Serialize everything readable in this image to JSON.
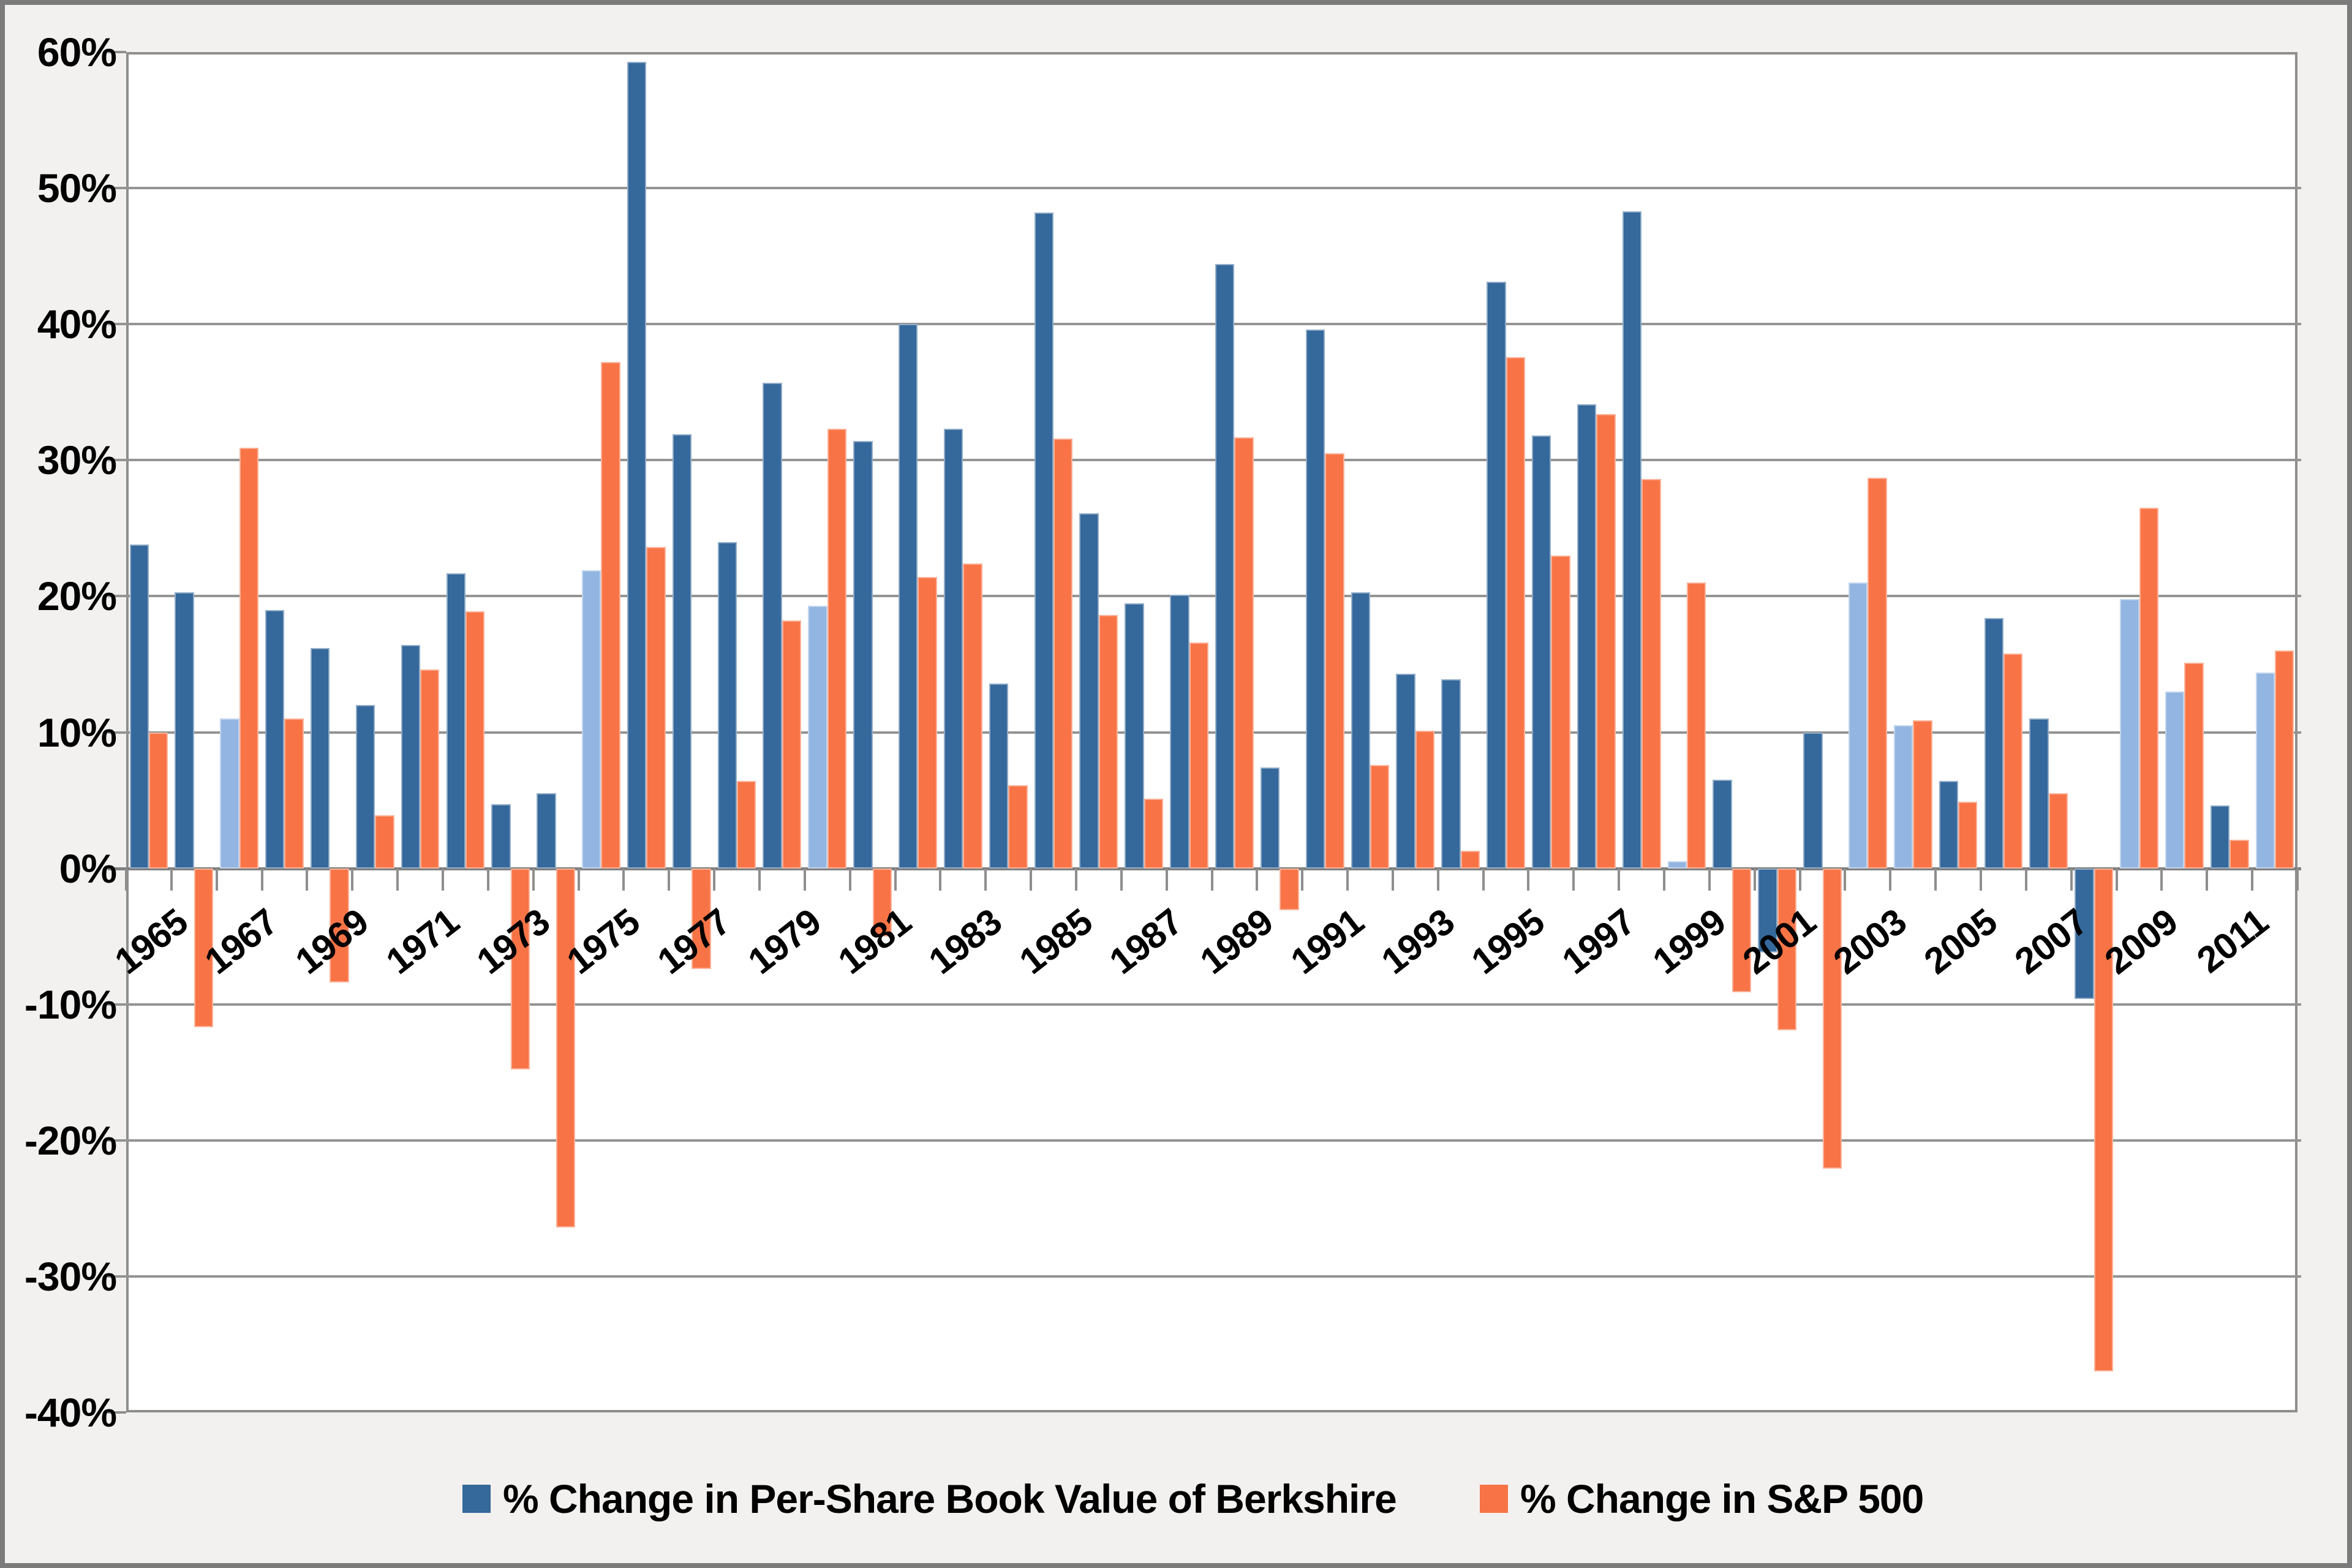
{
  "chart_data": {
    "type": "bar",
    "title": "",
    "categories": [
      1965,
      1966,
      1967,
      1968,
      1969,
      1970,
      1971,
      1972,
      1973,
      1974,
      1975,
      1976,
      1977,
      1978,
      1979,
      1980,
      1981,
      1982,
      1983,
      1984,
      1985,
      1986,
      1987,
      1988,
      1989,
      1990,
      1991,
      1992,
      1993,
      1994,
      1995,
      1996,
      1997,
      1998,
      1999,
      2000,
      2001,
      2002,
      2003,
      2004,
      2005,
      2006,
      2007,
      2008,
      2009,
      2010,
      2011,
      2012
    ],
    "series": [
      {
        "name": "% Change in Per-Share Book Value of Berkshire",
        "color": "#35689B",
        "underperform_color": "#92B5E1",
        "underperform_years": [
          1967,
          1975,
          1980,
          1999,
          2003,
          2004,
          2009,
          2010,
          2012
        ],
        "values": [
          23.8,
          20.3,
          11.0,
          19.0,
          16.2,
          12.0,
          16.4,
          21.7,
          4.7,
          5.5,
          21.9,
          59.3,
          31.9,
          24.0,
          35.7,
          19.3,
          31.4,
          40.0,
          32.3,
          13.6,
          48.2,
          26.1,
          19.5,
          20.1,
          44.4,
          7.4,
          39.6,
          20.3,
          14.3,
          13.9,
          43.1,
          31.8,
          34.1,
          48.3,
          0.5,
          6.5,
          -6.2,
          10.0,
          21.0,
          10.5,
          6.4,
          18.4,
          11.0,
          -9.6,
          19.8,
          13.0,
          4.6,
          14.4
        ]
      },
      {
        "name": "% Change in S&P 500",
        "color": "#F87446",
        "values": [
          10.0,
          -11.7,
          30.9,
          11.0,
          -8.4,
          3.9,
          14.6,
          18.9,
          -14.8,
          -26.4,
          37.2,
          23.6,
          -7.4,
          6.4,
          18.2,
          32.3,
          -5.0,
          21.4,
          22.4,
          6.1,
          31.6,
          18.6,
          5.1,
          16.6,
          31.7,
          -3.1,
          30.5,
          7.6,
          10.1,
          1.3,
          37.6,
          23.0,
          33.4,
          28.6,
          21.0,
          -9.1,
          -11.9,
          -22.1,
          28.7,
          10.9,
          4.9,
          15.8,
          5.5,
          -37.0,
          26.5,
          15.1,
          2.1,
          16.0
        ]
      }
    ],
    "ylim": [
      -40,
      60
    ],
    "y_tick_step": 10,
    "y_tick_labels": [
      "60%",
      "50%",
      "40%",
      "30%",
      "20%",
      "10%",
      "0%",
      "-10%",
      "-20%",
      "-30%",
      "-40%"
    ],
    "x_tick_labels": [
      "1965",
      "1967",
      "1969",
      "1971",
      "1973",
      "1975",
      "1977",
      "1979",
      "1981",
      "1983",
      "1985",
      "1987",
      "1989",
      "1991",
      "1993",
      "1995",
      "1997",
      "1999",
      "2001",
      "2003",
      "2005",
      "2007",
      "2009",
      "2011"
    ],
    "grid": "horizontal",
    "legend_position": "bottom"
  },
  "colors": {
    "background": "#F2F1EF",
    "plot_background": "#FFFFFF",
    "gridline": "#949494",
    "axis_line": "#7F7F7F",
    "plot_border": "#8E8E8E",
    "outer_border": "#7B7B7B",
    "text": "#000000"
  }
}
